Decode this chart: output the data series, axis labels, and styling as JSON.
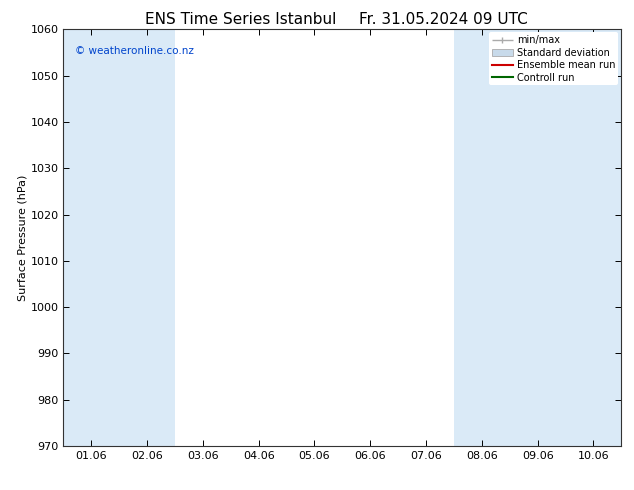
{
  "title_left": "ENS Time Series Istanbul",
  "title_right": "Fr. 31.05.2024 09 UTC",
  "ylabel": "Surface Pressure (hPa)",
  "ylim": [
    970,
    1060
  ],
  "yticks": [
    970,
    980,
    990,
    1000,
    1010,
    1020,
    1030,
    1040,
    1050,
    1060
  ],
  "xtick_labels": [
    "01.06",
    "02.06",
    "03.06",
    "04.06",
    "05.06",
    "06.06",
    "07.06",
    "08.06",
    "09.06",
    "10.06"
  ],
  "background_color": "#ffffff",
  "plot_bg_color": "#ffffff",
  "shaded_band_color": "#daeaf7",
  "shaded_positions": [
    0,
    1,
    7,
    8,
    9
  ],
  "watermark": "© weatheronline.co.nz",
  "watermark_color": "#0044cc",
  "legend_labels": [
    "min/max",
    "Standard deviation",
    "Ensemble mean run",
    "Controll run"
  ],
  "legend_line_color": "#aaaaaa",
  "legend_std_color": "#c8daea",
  "legend_ens_color": "#cc0000",
  "legend_ctrl_color": "#006600",
  "title_fontsize": 11,
  "label_fontsize": 8,
  "tick_fontsize": 8,
  "watermark_fontsize": 7.5
}
